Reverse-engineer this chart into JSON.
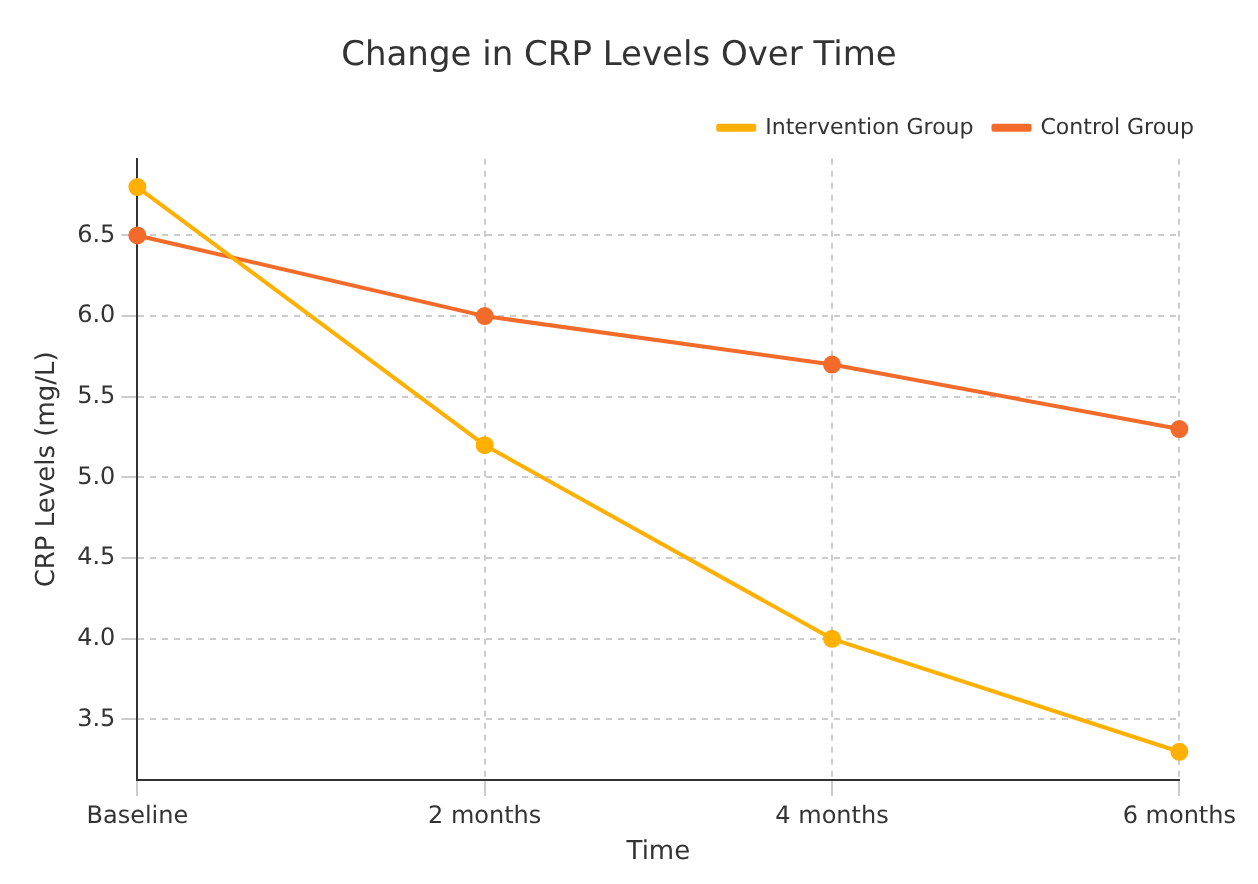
{
  "chart_data": {
    "type": "line",
    "title": "Change in CRP Levels Over Time",
    "xlabel": "Time",
    "ylabel": "CRP Levels (mg/L)",
    "categories": [
      "Baseline",
      "2 months",
      "4 months",
      "6 months"
    ],
    "series": [
      {
        "name": "Intervention Group",
        "color": "#ffb000",
        "values": [
          6.8,
          5.2,
          4.0,
          3.3
        ]
      },
      {
        "name": "Control Group",
        "color": "#f26b2a",
        "values": [
          6.5,
          6.0,
          5.7,
          5.3
        ]
      }
    ],
    "ylim": [
      3.125,
      6.975
    ],
    "yticks": [
      {
        "value": 3.5,
        "label": "3.5"
      },
      {
        "value": 4.0,
        "label": "4.0"
      },
      {
        "value": 4.5,
        "label": "4.5"
      },
      {
        "value": 5.0,
        "label": "5.0"
      },
      {
        "value": 5.5,
        "label": "5.5"
      },
      {
        "value": 6.0,
        "label": "6.0"
      },
      {
        "value": 6.5,
        "label": "6.5"
      }
    ],
    "grid": true,
    "legend": "top right",
    "marker": "circle",
    "line_style": "solid"
  }
}
